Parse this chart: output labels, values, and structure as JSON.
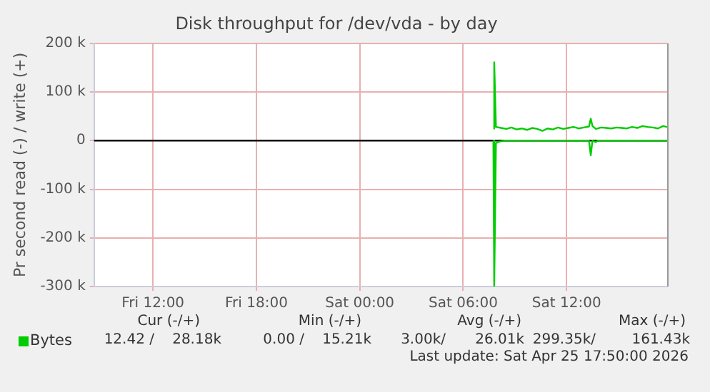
{
  "chart_data": {
    "type": "line",
    "title": "Disk throughput for /dev/vda - by day",
    "ylabel": "Pr second read (-) / write (+)",
    "xlim": [
      "2026-04-24T08:35",
      "2026-04-25T17:50"
    ],
    "xticks": [
      {
        "value": "2026-04-24T12:00",
        "label": "Fri 12:00"
      },
      {
        "value": "2026-04-24T18:00",
        "label": "Fri 18:00"
      },
      {
        "value": "2026-04-25T00:00",
        "label": "Sat 00:00"
      },
      {
        "value": "2026-04-25T06:00",
        "label": "Sat 06:00"
      },
      {
        "value": "2026-04-25T12:00",
        "label": "Sat 12:00"
      }
    ],
    "ylim": [
      -300000,
      200000
    ],
    "yticks": [
      {
        "value": -300000,
        "label": "-300 k"
      },
      {
        "value": -200000,
        "label": "-200 k"
      },
      {
        "value": -100000,
        "label": "-100 k"
      },
      0,
      {
        "value": 100000,
        "label": "100 k"
      },
      {
        "value": 200000,
        "label": "200 k"
      }
    ],
    "grid": true,
    "legend": "bottom left",
    "marker": "none",
    "line_style": "solid",
    "ref_lines": [
      {
        "axis": "y",
        "value": 0,
        "color": "#000000"
      }
    ],
    "series": [
      {
        "color": "#00cc00",
        "x": [
          "2026-04-25T07:45",
          "2026-04-25T07:48",
          "2026-04-25T07:54",
          "2026-04-25T08:06",
          "2026-04-25T08:24",
          "2026-04-25T09:00",
          "2026-04-25T10:00",
          "2026-04-25T11:00",
          "2026-04-25T12:00",
          "2026-04-25T13:00",
          "2026-04-25T13:18",
          "2026-04-25T13:24",
          "2026-04-25T13:30",
          "2026-04-25T13:42",
          "2026-04-25T13:48",
          "2026-04-25T15:00",
          "2026-04-25T16:00",
          "2026-04-25T17:50"
        ],
        "values": [
          0,
          -299000,
          -5000,
          -2000,
          0,
          0,
          0,
          0,
          0,
          0,
          0,
          -30000,
          0,
          -3000,
          0,
          0,
          0,
          0
        ]
      },
      {
        "name": "Bytes",
        "color": "#00cc00",
        "x": [
          "2026-04-25T07:45",
          "2026-04-25T07:48",
          "2026-04-25T07:54",
          "2026-04-25T08:12",
          "2026-04-25T08:30",
          "2026-04-25T08:48",
          "2026-04-25T09:06",
          "2026-04-25T09:24",
          "2026-04-25T09:42",
          "2026-04-25T10:00",
          "2026-04-25T10:18",
          "2026-04-25T10:36",
          "2026-04-25T10:54",
          "2026-04-25T11:12",
          "2026-04-25T11:30",
          "2026-04-25T11:48",
          "2026-04-25T12:06",
          "2026-04-25T12:24",
          "2026-04-25T12:42",
          "2026-04-25T13:00",
          "2026-04-25T13:18",
          "2026-04-25T13:24",
          "2026-04-25T13:30",
          "2026-04-25T13:42",
          "2026-04-25T14:00",
          "2026-04-25T14:18",
          "2026-04-25T14:36",
          "2026-04-25T14:54",
          "2026-04-25T15:12",
          "2026-04-25T15:30",
          "2026-04-25T15:48",
          "2026-04-25T16:06",
          "2026-04-25T16:24",
          "2026-04-25T16:42",
          "2026-04-25T17:00",
          "2026-04-25T17:18",
          "2026-04-25T17:36",
          "2026-04-25T17:50"
        ],
        "values": [
          25000,
          161000,
          28000,
          26000,
          24000,
          27000,
          23000,
          25000,
          22000,
          26000,
          24000,
          20000,
          25000,
          23000,
          27000,
          24000,
          26000,
          28000,
          25000,
          27000,
          29000,
          45000,
          30000,
          24000,
          27000,
          26000,
          25000,
          27000,
          26000,
          25000,
          28000,
          26000,
          30000,
          28000,
          27000,
          25000,
          30000,
          28000
        ]
      }
    ],
    "annotations": [
      "Cur (-/+)",
      "Min (-/+)",
      "Avg (-/+)",
      "Max (-/+)",
      "12.42 /",
      "28.18k",
      "0.00 /",
      "15.21k",
      "3.00k/",
      "26.01k",
      "299.35k/",
      "161.43k",
      "Last update: Sat Apr 25 17:50:00 2026"
    ]
  }
}
